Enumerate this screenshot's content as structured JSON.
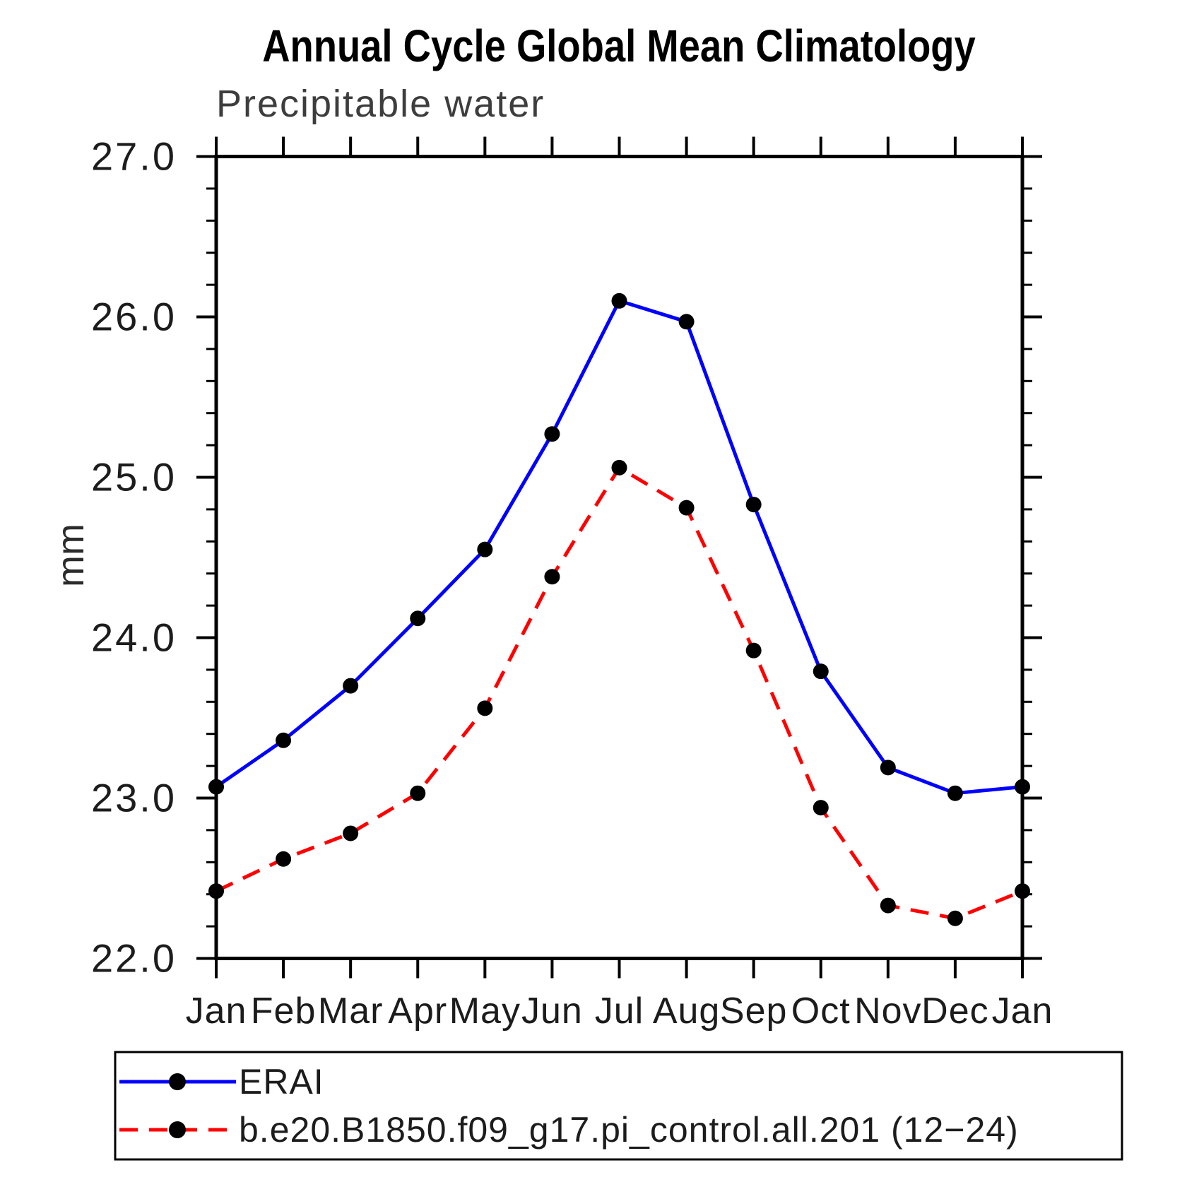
{
  "title": "Annual Cycle Global Mean Climatology",
  "subtitle": "Precipitable water",
  "chart_data": {
    "type": "line",
    "title": "Annual Cycle Global Mean Climatology",
    "subtitle": "Precipitable water",
    "ylabel": "mm",
    "xlabel": "",
    "categories": [
      "Jan",
      "Feb",
      "Mar",
      "Apr",
      "May",
      "Jun",
      "Jul",
      "Aug",
      "Sep",
      "Oct",
      "Nov",
      "Dec",
      "Jan"
    ],
    "ylim": [
      22.0,
      27.0
    ],
    "ytick_major_values": [
      22.0,
      23.0,
      24.0,
      25.0,
      26.0,
      27.0
    ],
    "ytick_labels": [
      "22.0",
      "23.0",
      "24.0",
      "25.0",
      "26.0",
      "27.0"
    ],
    "ytick_minor_step": 0.2,
    "grid": false,
    "legend_position": "bottom",
    "marker_color": "#000000",
    "series": [
      {
        "name": "ERAI",
        "color": "#0000ff",
        "style": "solid",
        "marker": "circle",
        "values": [
          23.07,
          23.36,
          23.7,
          24.12,
          24.55,
          25.27,
          26.1,
          25.97,
          24.83,
          23.79,
          23.19,
          23.03,
          23.07
        ]
      },
      {
        "name": "b.e20.B1850.f09_g17.pi_control.all.201 (12−24)",
        "color": "#ff0000",
        "style": "dashed",
        "marker": "circle",
        "values": [
          22.42,
          22.62,
          22.78,
          23.03,
          23.56,
          24.38,
          25.06,
          24.81,
          23.92,
          22.94,
          22.33,
          22.25,
          22.42
        ]
      }
    ]
  }
}
